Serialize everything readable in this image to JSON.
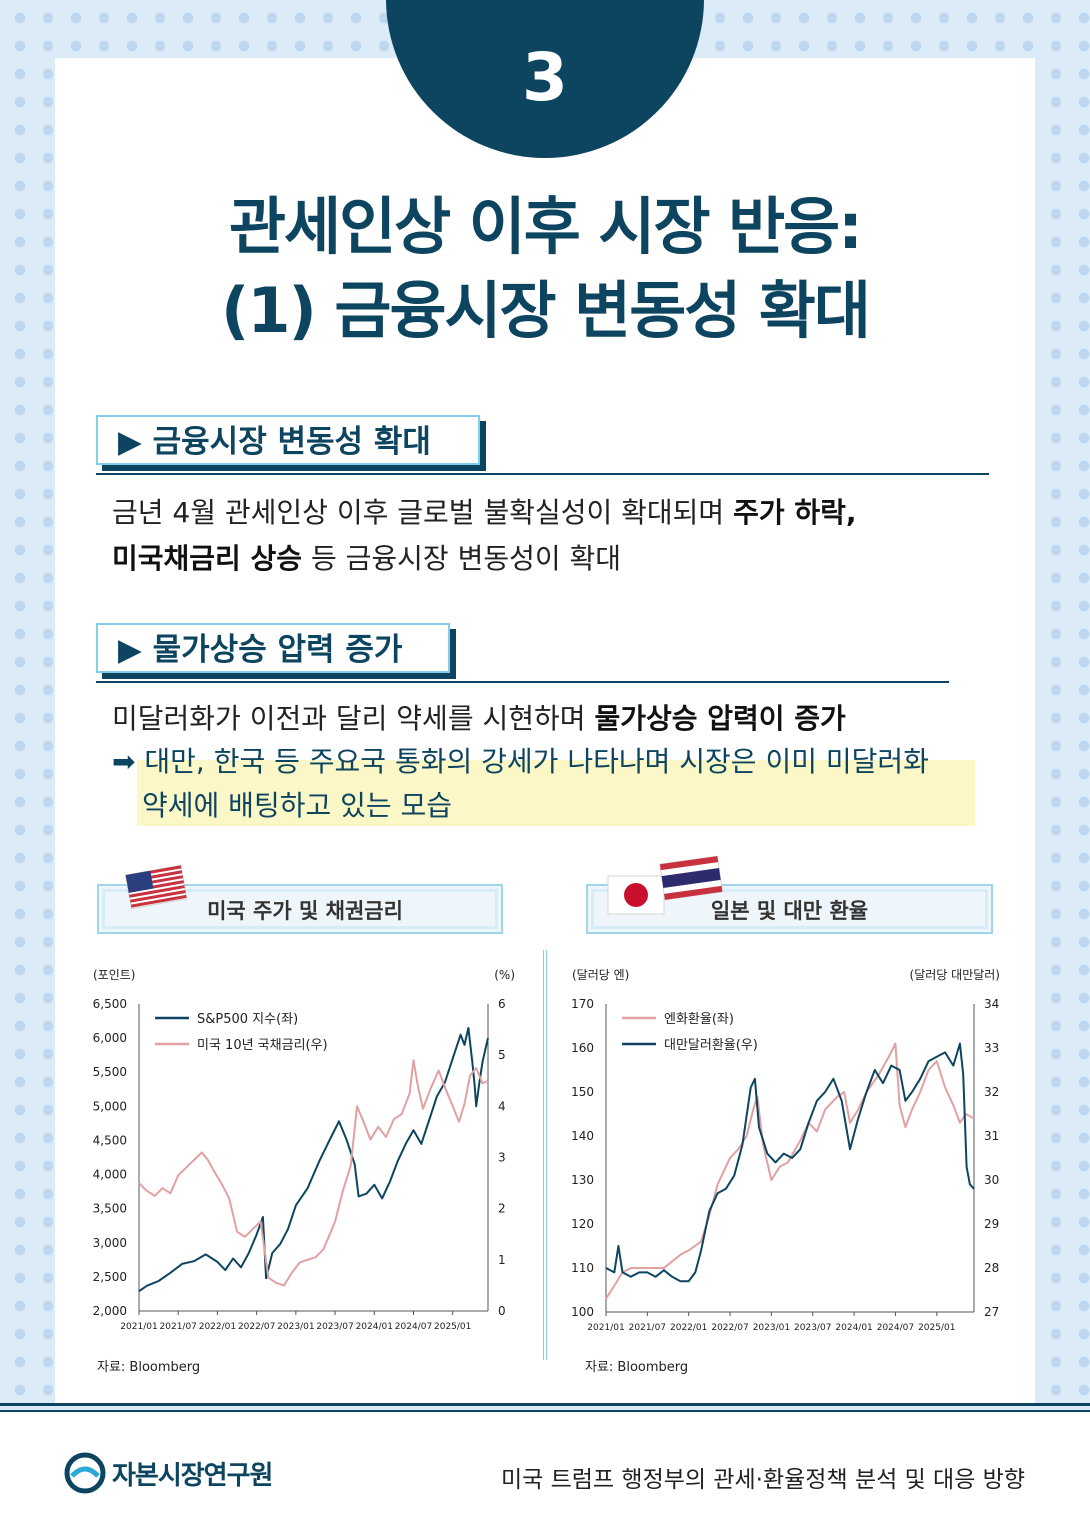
{
  "badge_number": "3",
  "title_line1": "관세인상 이후 시장 반응:",
  "title_line2": "(1) 금융시장 변동성 확대",
  "section1": {
    "heading": "▶ 금융시장 변동성 확대",
    "line1_plain": "금년 4월 관세인상 이후 글로벌 불확실성이 확대되며 ",
    "line1_bold": "주가 하락,",
    "line2_bold": "미국채금리 상승",
    "line2_plain": " 등 금융시장 변동성이 확대"
  },
  "section2": {
    "heading": "▶ 물가상승 압력 증가",
    "line1_plain": "미달러화가 이전과 달리 약세를 시현하며 ",
    "line1_bold": "물가상승 압력이 증가",
    "arrow": "➡",
    "highlight_line1": "대만, 한국 등 주요국 통화의 강세가 나타나며 시장은 이미 미달러화",
    "highlight_line2": "약세에 배팅하고 있는 모습"
  },
  "chart_data": [
    {
      "type": "line",
      "title": "미국 주가 및 채권금리",
      "left_unit": "(포인트)",
      "right_unit": "(%)",
      "x_ticks": [
        "2021/01",
        "2021/07",
        "2022/01",
        "2022/07",
        "2023/01",
        "2023/07",
        "2024/01",
        "2024/07",
        "2025/01"
      ],
      "left_ticks": [
        "6,500",
        "6,000",
        "5,500",
        "5,000",
        "4,500",
        "4,000",
        "3,500",
        "3,000",
        "2,500",
        "2,000"
      ],
      "right_ticks": [
        "6",
        "5",
        "4",
        "3",
        "2",
        "1",
        "0"
      ],
      "ylim_left": [
        2000,
        6500
      ],
      "ylim_right": [
        0,
        6
      ],
      "x_range": [
        2021.0,
        2025.45
      ],
      "series": [
        {
          "name": "S&P500 지수(좌)",
          "axis": "left",
          "color": "#0d4560",
          "points": [
            [
              2021.0,
              2290
            ],
            [
              2021.1,
              2370
            ],
            [
              2021.25,
              2440
            ],
            [
              2021.4,
              2560
            ],
            [
              2021.55,
              2690
            ],
            [
              2021.7,
              2730
            ],
            [
              2021.85,
              2830
            ],
            [
              2022.0,
              2720
            ],
            [
              2022.1,
              2600
            ],
            [
              2022.2,
              2770
            ],
            [
              2022.3,
              2640
            ],
            [
              2022.4,
              2850
            ],
            [
              2022.5,
              3120
            ],
            [
              2022.58,
              3380
            ],
            [
              2022.62,
              2480
            ],
            [
              2022.7,
              2850
            ],
            [
              2022.8,
              2980
            ],
            [
              2022.9,
              3200
            ],
            [
              2023.0,
              3550
            ],
            [
              2023.15,
              3800
            ],
            [
              2023.3,
              4200
            ],
            [
              2023.45,
              4550
            ],
            [
              2023.55,
              4780
            ],
            [
              2023.65,
              4500
            ],
            [
              2023.75,
              4150
            ],
            [
              2023.8,
              3680
            ],
            [
              2023.9,
              3720
            ],
            [
              2024.0,
              3850
            ],
            [
              2024.1,
              3650
            ],
            [
              2024.2,
              3900
            ],
            [
              2024.3,
              4200
            ],
            [
              2024.4,
              4450
            ],
            [
              2024.5,
              4650
            ],
            [
              2024.6,
              4450
            ],
            [
              2024.7,
              4800
            ],
            [
              2024.8,
              5150
            ],
            [
              2024.9,
              5350
            ],
            [
              2025.0,
              5700
            ],
            [
              2025.1,
              6050
            ],
            [
              2025.15,
              5900
            ],
            [
              2025.2,
              6150
            ],
            [
              2025.25,
              5650
            ],
            [
              2025.28,
              5300
            ],
            [
              2025.3,
              5000
            ],
            [
              2025.34,
              5350
            ],
            [
              2025.38,
              5650
            ],
            [
              2025.42,
              5850
            ],
            [
              2025.45,
              6000
            ]
          ]
        },
        {
          "name": "미국 10년 국채금리(우)",
          "axis": "right",
          "color": "#e2a0a0",
          "points": [
            [
              2021.0,
              2.5
            ],
            [
              2021.1,
              2.35
            ],
            [
              2021.2,
              2.25
            ],
            [
              2021.3,
              2.4
            ],
            [
              2021.4,
              2.3
            ],
            [
              2021.5,
              2.65
            ],
            [
              2021.6,
              2.8
            ],
            [
              2021.7,
              2.95
            ],
            [
              2021.8,
              3.1
            ],
            [
              2021.88,
              2.95
            ],
            [
              2021.95,
              2.75
            ],
            [
              2022.05,
              2.5
            ],
            [
              2022.15,
              2.2
            ],
            [
              2022.25,
              1.55
            ],
            [
              2022.35,
              1.45
            ],
            [
              2022.45,
              1.6
            ],
            [
              2022.55,
              1.75
            ],
            [
              2022.6,
              1.2
            ],
            [
              2022.65,
              0.65
            ],
            [
              2022.75,
              0.55
            ],
            [
              2022.85,
              0.5
            ],
            [
              2022.95,
              0.75
            ],
            [
              2023.05,
              0.95
            ],
            [
              2023.15,
              1.0
            ],
            [
              2023.25,
              1.05
            ],
            [
              2023.35,
              1.2
            ],
            [
              2023.5,
              1.75
            ],
            [
              2023.6,
              2.35
            ],
            [
              2023.7,
              2.85
            ],
            [
              2023.78,
              4.0
            ],
            [
              2023.85,
              3.75
            ],
            [
              2023.95,
              3.35
            ],
            [
              2024.05,
              3.6
            ],
            [
              2024.15,
              3.4
            ],
            [
              2024.25,
              3.75
            ],
            [
              2024.35,
              3.85
            ],
            [
              2024.45,
              4.25
            ],
            [
              2024.5,
              4.9
            ],
            [
              2024.55,
              4.45
            ],
            [
              2024.62,
              3.95
            ],
            [
              2024.72,
              4.35
            ],
            [
              2024.82,
              4.7
            ],
            [
              2024.92,
              4.3
            ],
            [
              2025.0,
              4.0
            ],
            [
              2025.08,
              3.7
            ],
            [
              2025.15,
              4.05
            ],
            [
              2025.22,
              4.6
            ],
            [
              2025.3,
              4.75
            ],
            [
              2025.38,
              4.45
            ],
            [
              2025.45,
              4.5
            ]
          ]
        }
      ],
      "source": "자료: Bloomberg"
    },
    {
      "type": "line",
      "title": "일본 및 대만 환율",
      "left_unit": "(달러당 엔)",
      "right_unit": "(달러당 대만달러)",
      "x_ticks": [
        "2021/01",
        "2021/07",
        "2022/01",
        "2022/07",
        "2023/01",
        "2023/07",
        "2024/01",
        "2024/07",
        "2025/01"
      ],
      "left_ticks": [
        "170",
        "160",
        "150",
        "140",
        "130",
        "120",
        "110",
        "100"
      ],
      "right_ticks": [
        "34",
        "33",
        "32",
        "31",
        "30",
        "29",
        "28",
        "27"
      ],
      "ylim_left": [
        100,
        170
      ],
      "ylim_right": [
        27,
        34
      ],
      "x_range": [
        2021.0,
        2025.45
      ],
      "series": [
        {
          "name": "엔화환율(좌)",
          "axis": "left",
          "color": "#e2a0a0",
          "points": [
            [
              2021.0,
              103
            ],
            [
              2021.1,
              106
            ],
            [
              2021.2,
              109
            ],
            [
              2021.3,
              110
            ],
            [
              2021.5,
              110
            ],
            [
              2021.7,
              110
            ],
            [
              2021.9,
              113
            ],
            [
              2022.0,
              114
            ],
            [
              2022.15,
              116
            ],
            [
              2022.25,
              122
            ],
            [
              2022.35,
              129
            ],
            [
              2022.5,
              135
            ],
            [
              2022.6,
              137
            ],
            [
              2022.7,
              140
            ],
            [
              2022.78,
              146
            ],
            [
              2022.83,
              149
            ],
            [
              2022.9,
              138
            ],
            [
              2023.0,
              130
            ],
            [
              2023.1,
              133
            ],
            [
              2023.2,
              134
            ],
            [
              2023.35,
              139
            ],
            [
              2023.45,
              143
            ],
            [
              2023.55,
              141
            ],
            [
              2023.65,
              146
            ],
            [
              2023.8,
              149
            ],
            [
              2023.88,
              150
            ],
            [
              2023.95,
              143
            ],
            [
              2024.05,
              146
            ],
            [
              2024.15,
              150
            ],
            [
              2024.3,
              154
            ],
            [
              2024.42,
              158
            ],
            [
              2024.5,
              161
            ],
            [
              2024.55,
              147
            ],
            [
              2024.62,
              142
            ],
            [
              2024.7,
              146
            ],
            [
              2024.8,
              150
            ],
            [
              2024.9,
              155
            ],
            [
              2025.0,
              157
            ],
            [
              2025.1,
              151
            ],
            [
              2025.2,
              147
            ],
            [
              2025.28,
              143
            ],
            [
              2025.35,
              145
            ],
            [
              2025.45,
              144
            ]
          ]
        },
        {
          "name": "대만달러환율(우)",
          "axis": "right",
          "color": "#0d4560",
          "points": [
            [
              2021.0,
              28.0
            ],
            [
              2021.1,
              27.9
            ],
            [
              2021.15,
              28.5
            ],
            [
              2021.2,
              27.9
            ],
            [
              2021.3,
              27.8
            ],
            [
              2021.4,
              27.9
            ],
            [
              2021.5,
              27.9
            ],
            [
              2021.6,
              27.8
            ],
            [
              2021.7,
              27.95
            ],
            [
              2021.8,
              27.8
            ],
            [
              2021.9,
              27.7
            ],
            [
              2022.0,
              27.7
            ],
            [
              2022.08,
              27.9
            ],
            [
              2022.15,
              28.4
            ],
            [
              2022.25,
              29.3
            ],
            [
              2022.35,
              29.7
            ],
            [
              2022.45,
              29.8
            ],
            [
              2022.55,
              30.1
            ],
            [
              2022.65,
              30.8
            ],
            [
              2022.75,
              32.1
            ],
            [
              2022.8,
              32.3
            ],
            [
              2022.85,
              31.2
            ],
            [
              2022.95,
              30.6
            ],
            [
              2023.05,
              30.4
            ],
            [
              2023.15,
              30.6
            ],
            [
              2023.25,
              30.5
            ],
            [
              2023.35,
              30.7
            ],
            [
              2023.45,
              31.3
            ],
            [
              2023.55,
              31.8
            ],
            [
              2023.65,
              32.0
            ],
            [
              2023.75,
              32.3
            ],
            [
              2023.85,
              31.8
            ],
            [
              2023.95,
              30.7
            ],
            [
              2024.05,
              31.4
            ],
            [
              2024.15,
              32.0
            ],
            [
              2024.25,
              32.5
            ],
            [
              2024.35,
              32.2
            ],
            [
              2024.45,
              32.6
            ],
            [
              2024.55,
              32.5
            ],
            [
              2024.62,
              31.8
            ],
            [
              2024.7,
              32.0
            ],
            [
              2024.8,
              32.3
            ],
            [
              2024.9,
              32.7
            ],
            [
              2025.0,
              32.8
            ],
            [
              2025.1,
              32.9
            ],
            [
              2025.2,
              32.6
            ],
            [
              2025.28,
              33.1
            ],
            [
              2025.32,
              32.4
            ],
            [
              2025.36,
              30.3
            ],
            [
              2025.4,
              29.9
            ],
            [
              2025.45,
              29.8
            ]
          ]
        }
      ],
      "source": "자료: Bloomberg"
    }
  ],
  "footer": {
    "org_name": "자본시장연구원",
    "report_title": "미국 트럼프 행정부의 관세·환율정책 분석 및 대응 방향"
  },
  "colors": {
    "navy": "#0d4560",
    "pink": "#e2a0a0",
    "cyan": "#7fd0e8",
    "highlight": "#fbf7c6"
  }
}
